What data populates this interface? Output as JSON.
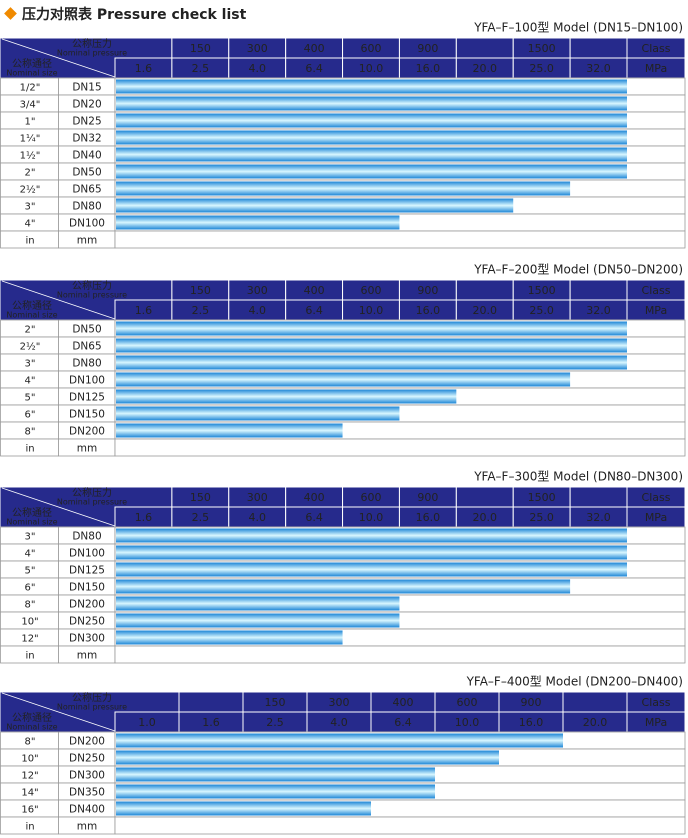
{
  "title": "压力对照表 Pressure check list",
  "header": {
    "pressure_zh": "公称压力",
    "pressure_en": "Nominal pressure",
    "size_zh": "公称通径",
    "size_en": "Nominal size",
    "class": "Class",
    "unit": "MPa",
    "in": "in",
    "mm": "mm"
  },
  "tables": [
    {
      "model": "YFA–F–100型  Model (DN15–DN100)",
      "class": [
        null,
        "150",
        "300",
        "400",
        "600",
        "900",
        null,
        "1500",
        null
      ],
      "mpa": [
        {
          "value": 1.6,
          "label": "1.6"
        },
        {
          "value": 2.5,
          "label": "2.5"
        },
        {
          "value": 4,
          "label": "4.0"
        },
        {
          "value": 6.4,
          "label": "6.4"
        },
        {
          "value": 10,
          "label": "10.0"
        },
        {
          "value": 16,
          "label": "16.0"
        },
        {
          "value": 20,
          "label": "20.0"
        },
        {
          "value": 25,
          "label": "25.0"
        },
        {
          "value": 32,
          "label": "32.0"
        }
      ],
      "rows": [
        {
          "in": "1/2\"",
          "dn": "DN15",
          "rating": 32
        },
        {
          "in": "3/4\"",
          "dn": "DN20",
          "rating": 32
        },
        {
          "in": "1\"",
          "dn": "DN25",
          "rating": 32
        },
        {
          "in": "1¼\"",
          "dn": "DN32",
          "rating": 32
        },
        {
          "in": "1½\"",
          "dn": "DN40",
          "rating": 32
        },
        {
          "in": "2\"",
          "dn": "DN50",
          "rating": 32
        },
        {
          "in": "2½\"",
          "dn": "DN65",
          "rating": 25
        },
        {
          "in": "3\"",
          "dn": "DN80",
          "rating": 20
        },
        {
          "in": "4\"",
          "dn": "DN100",
          "rating": 10
        }
      ]
    },
    {
      "model": "YFA–F–200型  Model (DN50–DN200)",
      "class": [
        null,
        "150",
        "300",
        "400",
        "600",
        "900",
        null,
        "1500",
        null
      ],
      "mpa": [
        {
          "value": 1.6,
          "label": "1.6"
        },
        {
          "value": 2.5,
          "label": "2.5"
        },
        {
          "value": 4,
          "label": "4.0"
        },
        {
          "value": 6.4,
          "label": "6.4"
        },
        {
          "value": 10,
          "label": "10.0"
        },
        {
          "value": 16,
          "label": "16.0"
        },
        {
          "value": 20,
          "label": "20.0"
        },
        {
          "value": 25,
          "label": "25.0"
        },
        {
          "value": 32,
          "label": "32.0"
        }
      ],
      "rows": [
        {
          "in": "2\"",
          "dn": "DN50",
          "rating": 32
        },
        {
          "in": "2½\"",
          "dn": "DN65",
          "rating": 32
        },
        {
          "in": "3\"",
          "dn": "DN80",
          "rating": 32
        },
        {
          "in": "4\"",
          "dn": "DN100",
          "rating": 25
        },
        {
          "in": "5\"",
          "dn": "DN125",
          "rating": 16
        },
        {
          "in": "6\"",
          "dn": "DN150",
          "rating": 10
        },
        {
          "in": "8\"",
          "dn": "DN200",
          "rating": 6.4
        }
      ]
    },
    {
      "model": "YFA–F–300型  Model (DN80–DN300)",
      "class": [
        null,
        "150",
        "300",
        "400",
        "600",
        "900",
        null,
        "1500",
        null
      ],
      "mpa": [
        {
          "value": 1.6,
          "label": "1.6"
        },
        {
          "value": 2.5,
          "label": "2.5"
        },
        {
          "value": 4,
          "label": "4.0"
        },
        {
          "value": 6.4,
          "label": "6.4"
        },
        {
          "value": 10,
          "label": "10.0"
        },
        {
          "value": 16,
          "label": "16.0"
        },
        {
          "value": 20,
          "label": "20.0"
        },
        {
          "value": 25,
          "label": "25.0"
        },
        {
          "value": 32,
          "label": "32.0"
        }
      ],
      "rows": [
        {
          "in": "3\"",
          "dn": "DN80",
          "rating": 32
        },
        {
          "in": "4\"",
          "dn": "DN100",
          "rating": 32
        },
        {
          "in": "5\"",
          "dn": "DN125",
          "rating": 32
        },
        {
          "in": "6\"",
          "dn": "DN150",
          "rating": 25
        },
        {
          "in": "8\"",
          "dn": "DN200",
          "rating": 10
        },
        {
          "in": "10\"",
          "dn": "DN250",
          "rating": 10
        },
        {
          "in": "12\"",
          "dn": "DN300",
          "rating": 6.4
        }
      ]
    },
    {
      "model": "YFA–F–400型  Model (DN200–DN400)",
      "class": [
        null,
        null,
        "150",
        "300",
        "400",
        "600",
        "900",
        null
      ],
      "mpa": [
        {
          "value": 1,
          "label": "1.0"
        },
        {
          "value": 1.6,
          "label": "1.6"
        },
        {
          "value": 2.5,
          "label": "2.5"
        },
        {
          "value": 4,
          "label": "4.0"
        },
        {
          "value": 6.4,
          "label": "6.4"
        },
        {
          "value": 10,
          "label": "10.0"
        },
        {
          "value": 16,
          "label": "16.0"
        },
        {
          "value": 20,
          "label": "20.0"
        }
      ],
      "rows": [
        {
          "in": "8\"",
          "dn": "DN200",
          "rating": 16
        },
        {
          "in": "10\"",
          "dn": "DN250",
          "rating": 10
        },
        {
          "in": "12\"",
          "dn": "DN300",
          "rating": 6.4
        },
        {
          "in": "14\"",
          "dn": "DN350",
          "rating": 6.4
        },
        {
          "in": "16\"",
          "dn": "DN400",
          "rating": 4
        }
      ]
    }
  ]
}
